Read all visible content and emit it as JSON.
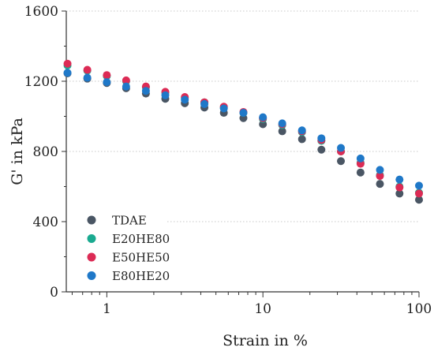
{
  "chart_data": {
    "type": "scatter",
    "title": "",
    "xlabel": "Strain in %",
    "ylabel": "G' in kPa",
    "xscale": "log",
    "xlim": [
      0.55,
      100
    ],
    "ylim": [
      0,
      1600
    ],
    "xticks": [
      1,
      10,
      100
    ],
    "xtick_labels": [
      "1",
      "10",
      "100"
    ],
    "yticks": [
      0,
      400,
      800,
      1200,
      1600
    ],
    "ytick_labels": [
      "0",
      "400",
      "800",
      "1200",
      "1600"
    ],
    "grid": "horizontal dotted",
    "legend_position": "bottom-left",
    "series": [
      {
        "name": "TDAE",
        "color": "#4a5664",
        "x": [
          0.56,
          0.75,
          1.0,
          1.33,
          1.78,
          2.37,
          3.16,
          4.22,
          5.62,
          7.5,
          10.0,
          13.3,
          17.8,
          23.7,
          31.6,
          42.2,
          56.2,
          75.0,
          100.0
        ],
        "y": [
          1245,
          1215,
          1190,
          1160,
          1130,
          1100,
          1075,
          1050,
          1020,
          990,
          955,
          915,
          870,
          810,
          745,
          680,
          615,
          560,
          525
        ]
      },
      {
        "name": "E20HE80",
        "color": "#1aaa90",
        "x": [
          0.56,
          0.75,
          1.0,
          1.33,
          1.78,
          2.37,
          3.16,
          4.22,
          5.62,
          7.5,
          10.0,
          13.3,
          17.8,
          23.7,
          31.6,
          42.2,
          56.2,
          75.0,
          100.0
        ],
        "y": [
          1290,
          1260,
          1230,
          1200,
          1165,
          1135,
          1105,
          1080,
          1050,
          1020,
          985,
          950,
          910,
          860,
          800,
          735,
          665,
          600,
          565
        ]
      },
      {
        "name": "E50HE50",
        "color": "#dc2b55",
        "x": [
          0.56,
          0.75,
          1.0,
          1.33,
          1.78,
          2.37,
          3.16,
          4.22,
          5.62,
          7.5,
          10.0,
          13.3,
          17.8,
          23.7,
          31.6,
          42.2,
          56.2,
          75.0,
          100.0
        ],
        "y": [
          1300,
          1265,
          1235,
          1205,
          1170,
          1140,
          1110,
          1080,
          1055,
          1025,
          990,
          955,
          915,
          865,
          800,
          730,
          660,
          595,
          560
        ]
      },
      {
        "name": "E80HE20",
        "color": "#1f78c8",
        "x": [
          0.56,
          0.75,
          1.0,
          1.33,
          1.78,
          2.37,
          3.16,
          4.22,
          5.62,
          7.5,
          10.0,
          13.3,
          17.8,
          23.7,
          31.6,
          42.2,
          56.2,
          75.0,
          100.0
        ],
        "y": [
          1248,
          1220,
          1195,
          1170,
          1145,
          1120,
          1095,
          1070,
          1045,
          1020,
          995,
          960,
          920,
          875,
          820,
          760,
          695,
          640,
          605
        ]
      }
    ]
  }
}
